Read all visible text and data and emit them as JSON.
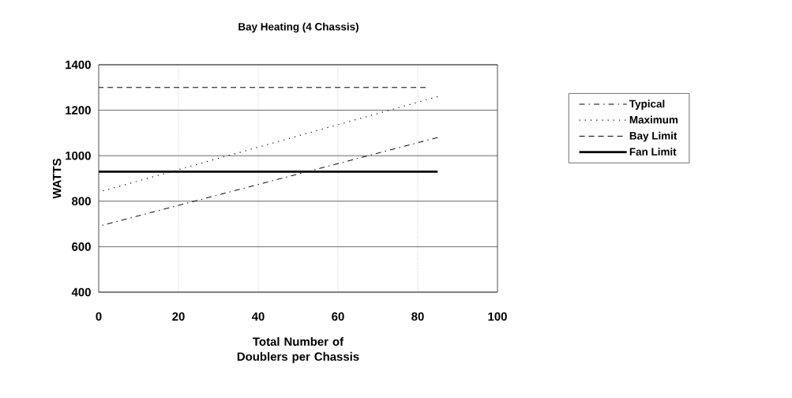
{
  "chart_data": {
    "type": "line",
    "title": "Bay Heating (4 Chassis)",
    "xlabel": "Total Number of Doublers per Chassis",
    "ylabel": "WATTS",
    "xlim": [
      0,
      100
    ],
    "xticks": [
      0,
      20,
      40,
      60,
      80,
      100
    ],
    "ylim": [
      400,
      1400
    ],
    "yticks": [
      400,
      600,
      800,
      1000,
      1200,
      1400
    ],
    "grid": true,
    "legend": "right",
    "marker": "none",
    "series": [
      {
        "name": "Typical",
        "color": "#000000",
        "line_style": "dashdot",
        "x": [
          0,
          85
        ],
        "values": [
          690,
          1080
        ]
      },
      {
        "name": "Maximum",
        "color": "#000000",
        "line_style": "dotted",
        "x": [
          0,
          85
        ],
        "values": [
          840,
          1260
        ]
      },
      {
        "name": "Bay Limit",
        "color": "#000000",
        "line_style": "dashed",
        "x": [
          0,
          82
        ],
        "values": [
          1300,
          1300
        ]
      },
      {
        "name": "Fan Limit",
        "color": "#000000",
        "line_style": "solid",
        "x": [
          0,
          85
        ],
        "values": [
          930,
          930
        ]
      }
    ]
  }
}
